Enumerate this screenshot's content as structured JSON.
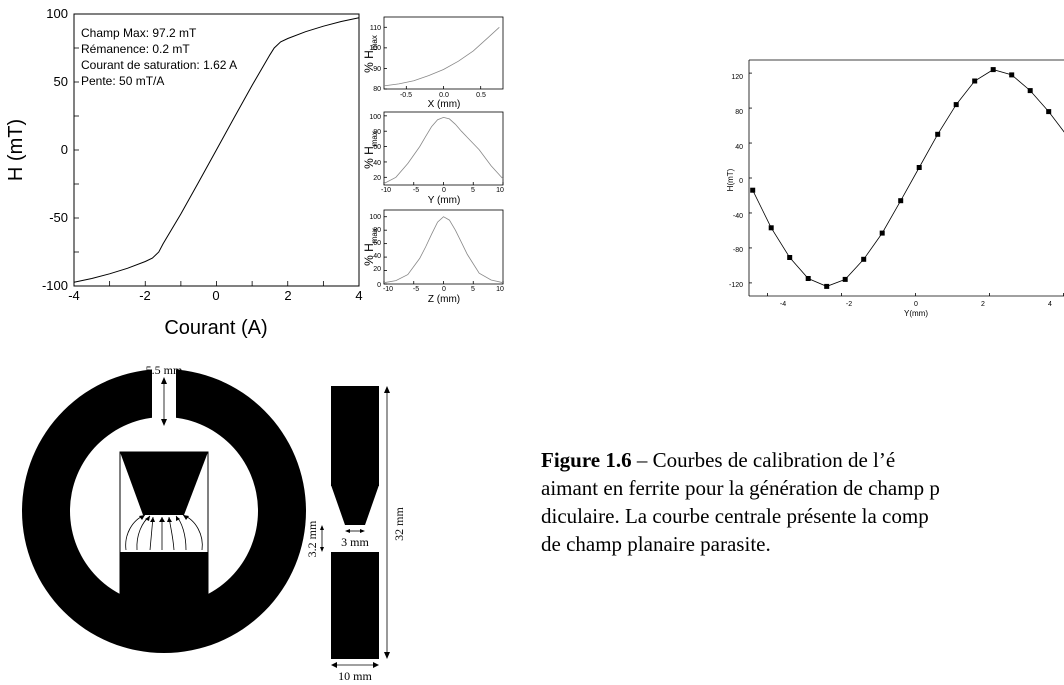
{
  "chart_data": [
    {
      "type": "line",
      "xlabel": "Courant (A)",
      "ylabel": "H (mT)",
      "xlim": [
        -4,
        4
      ],
      "ylim": [
        -100,
        100
      ],
      "xticks": [
        "-4",
        "-2",
        "0",
        "2",
        "4"
      ],
      "yticks": [
        "100",
        "50",
        "0",
        "-50",
        "-100"
      ],
      "annotations": [
        "Champ Max: 97.2 mT",
        "Rémanence: 0.2 mT",
        "Courant de saturation: 1.62 A",
        "Pente: 50 mT/A"
      ],
      "x": [
        -4.0,
        -3.5,
        -3.0,
        -2.5,
        -2.0,
        -1.8,
        -1.62,
        -1.5,
        -1.0,
        -0.5,
        0.0,
        0.5,
        1.0,
        1.5,
        1.62,
        1.8,
        2.0,
        2.5,
        3.0,
        3.5,
        4.0
      ],
      "y": [
        -97.2,
        -94.5,
        -91.0,
        -87.0,
        -82.0,
        -79.5,
        -75.0,
        -69.0,
        -47.0,
        -23.5,
        0.2,
        24.0,
        47.5,
        70.0,
        75.0,
        79.5,
        82.0,
        87.0,
        91.0,
        94.5,
        97.2
      ]
    },
    {
      "type": "line",
      "xlabel": "X (mm)",
      "ylabel": "% H",
      "ylabel_sub": "max",
      "xlim": [
        -0.8,
        0.8
      ],
      "ylim": [
        80,
        115
      ],
      "xticks": [
        "-0.5",
        "0.0",
        "0.5"
      ],
      "yticks": [
        "110",
        "100",
        "90",
        "80"
      ],
      "x": [
        -0.8,
        -0.6,
        -0.4,
        -0.2,
        0.0,
        0.2,
        0.4,
        0.6,
        0.75
      ],
      "y": [
        81.5,
        82.5,
        84.0,
        86.5,
        89.5,
        93.5,
        98.5,
        105.0,
        110.0
      ]
    },
    {
      "type": "line",
      "xlabel": "Y (mm)",
      "ylabel": "% H",
      "ylabel_sub": "max",
      "xlim": [
        -10,
        10
      ],
      "ylim": [
        10,
        105
      ],
      "xticks": [
        "-10",
        "-5",
        "0",
        "5",
        "10"
      ],
      "yticks": [
        "100",
        "80",
        "60",
        "40",
        "20"
      ],
      "x": [
        -10,
        -8,
        -6,
        -4,
        -3,
        -2,
        -1,
        0,
        1,
        2,
        3,
        4,
        6,
        8,
        10
      ],
      "y": [
        12,
        20,
        38,
        60,
        73,
        86,
        95,
        98,
        96,
        89,
        80,
        72,
        56,
        35,
        18
      ]
    },
    {
      "type": "line",
      "xlabel": "Z (mm)",
      "ylabel": "% H",
      "ylabel_sub": "max",
      "xlim": [
        -10,
        10
      ],
      "ylim": [
        0,
        110
      ],
      "xticks": [
        "-10",
        "-5",
        "0",
        "5",
        "10"
      ],
      "yticks": [
        "100",
        "80",
        "60",
        "40",
        "20",
        "0"
      ],
      "x": [
        -10,
        -8,
        -6,
        -4,
        -3,
        -2,
        -1,
        0,
        1,
        2,
        3,
        4,
        6,
        8,
        10
      ],
      "y": [
        2,
        5,
        14,
        38,
        55,
        74,
        92,
        100,
        95,
        80,
        62,
        44,
        16,
        6,
        2
      ],
      "zero_label_position": "overlaps -10 tick"
    },
    {
      "type": "line",
      "markers": "square",
      "xlabel": "Y(mm)",
      "ylabel": "H(mT)",
      "xlim": [
        -4.5,
        4.5
      ],
      "ylim": [
        -135,
        135
      ],
      "xticks": [
        "-4",
        "-2",
        "0",
        "2",
        "4"
      ],
      "yticks": [
        "120",
        "80",
        "40",
        "0",
        "-40",
        "-80",
        "-120"
      ],
      "x": [
        -4.4,
        -3.9,
        -3.4,
        -2.9,
        -2.4,
        -1.9,
        -1.4,
        -0.9,
        -0.4,
        0.1,
        0.6,
        1.1,
        1.6,
        2.1,
        2.6,
        3.1,
        3.6,
        4.1
      ],
      "y": [
        -14,
        -57,
        -91,
        -115,
        -124,
        -116,
        -93,
        -63,
        -26,
        12,
        50,
        84,
        111,
        124,
        118,
        100,
        76,
        48
      ]
    }
  ],
  "diagram": {
    "ring_gap_label": "5.5 mm",
    "height_label": "32 mm",
    "gap_height_label": "3.2 mm",
    "tip_width_label": "3 mm",
    "width_label": "10 mm"
  },
  "caption": {
    "figure_label": "Figure 1.6",
    "line1_rest": " – Courbes de calibration de l’é",
    "line2": "aimant en ferrite pour la génération de champ p",
    "line3": "diculaire. La courbe centrale présente la comp",
    "line4": "de champ planaire parasite."
  }
}
